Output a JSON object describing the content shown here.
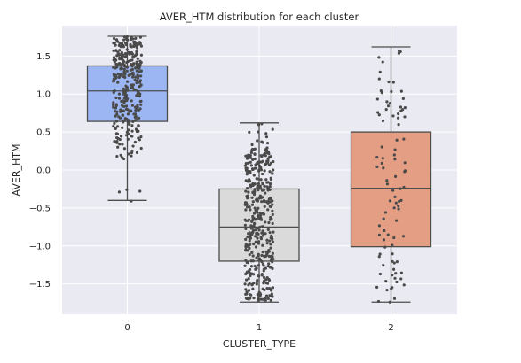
{
  "chart_data": {
    "type": "box",
    "title": "AVER_HTM distribution for each cluster",
    "xlabel": "CLUSTER_TYPE",
    "ylabel": "AVER_HTM",
    "categories": [
      "0",
      "1",
      "2"
    ],
    "ylim": [
      -1.9,
      1.9
    ],
    "yticks": [
      1.5,
      1.0,
      0.5,
      0.0,
      -0.5,
      -1.0,
      -1.5
    ],
    "ytick_labels": [
      "1.5",
      "1.0",
      "0.5",
      "0.0",
      "−0.5",
      "−1.0",
      "−1.5"
    ],
    "grid": true,
    "background": "#eaeaf2",
    "boxes": [
      {
        "category": "0",
        "color": "#9bb6f2",
        "whisker_low": -0.4,
        "q1": 0.64,
        "median": 1.04,
        "q3": 1.37,
        "whisker_high": 1.76
      },
      {
        "category": "1",
        "color": "#dadada",
        "whisker_low": -1.74,
        "q1": -1.2,
        "median": -0.75,
        "q3": -0.25,
        "whisker_high": 0.62
      },
      {
        "category": "2",
        "color": "#e49e84",
        "whisker_low": -1.74,
        "q1": -1.01,
        "median": -0.24,
        "q3": 0.5,
        "whisker_high": 1.62
      }
    ],
    "strip_points": {
      "color": "#4a4a4a",
      "0": {
        "count": 340,
        "dense_range": [
          0.1,
          1.76
        ],
        "outliers": [
          -0.28,
          -0.29,
          -0.41,
          -0.26
        ]
      },
      "1": {
        "count": 430,
        "dense_range": [
          -1.72,
          0.3
        ],
        "sparse_range": [
          0.3,
          0.62
        ]
      },
      "2": {
        "count": 95,
        "range": [
          -1.74,
          1.62
        ]
      }
    }
  }
}
